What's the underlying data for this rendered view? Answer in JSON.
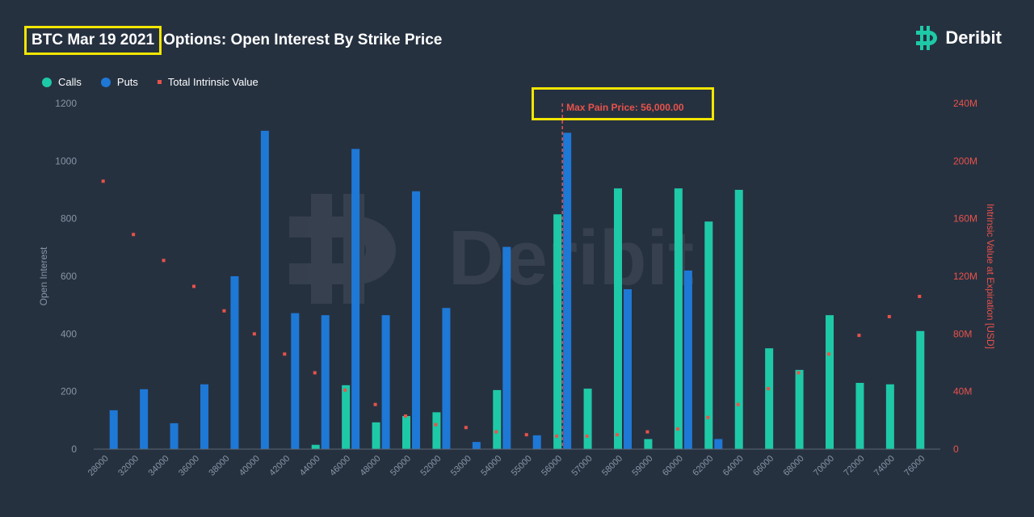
{
  "header": {
    "title_highlight": "BTC Mar 19 2021",
    "title_rest": "Options: Open Interest By Strike Price"
  },
  "brand": {
    "name": "Deribit",
    "logo_icon": "deribit-bitcoin-logo-icon"
  },
  "legend": [
    {
      "label": "Calls",
      "color": "#1ec9a7",
      "shape": "circle"
    },
    {
      "label": "Puts",
      "color": "#1e78d6",
      "shape": "circle"
    },
    {
      "label": "Total Intrinsic Value",
      "color": "#e8524a",
      "shape": "square"
    }
  ],
  "colors": {
    "calls": "#1ec9a7",
    "puts": "#1e78d6",
    "intrinsic": "#e8524a",
    "background": "#263140",
    "highlight": "#f2e600"
  },
  "chart_data": {
    "type": "bar",
    "categories": [
      "28000",
      "32000",
      "34000",
      "36000",
      "38000",
      "40000",
      "42000",
      "44000",
      "46000",
      "48000",
      "50000",
      "52000",
      "53000",
      "54000",
      "55000",
      "56000",
      "57000",
      "58000",
      "59000",
      "60000",
      "62000",
      "64000",
      "66000",
      "68000",
      "70000",
      "72000",
      "74000",
      "76000"
    ],
    "series": [
      {
        "name": "Calls",
        "axis": "left",
        "values": [
          0,
          0,
          0,
          0,
          0,
          0,
          0,
          15,
          222,
          93,
          115,
          128,
          0,
          205,
          0,
          815,
          210,
          905,
          35,
          905,
          790,
          900,
          350,
          275,
          465,
          230,
          225,
          410
        ]
      },
      {
        "name": "Puts",
        "axis": "left",
        "values": [
          135,
          208,
          90,
          225,
          600,
          1105,
          472,
          465,
          1042,
          465,
          895,
          490,
          25,
          702,
          48,
          1098,
          0,
          555,
          0,
          620,
          35,
          0,
          0,
          0,
          0,
          0,
          0,
          0
        ]
      },
      {
        "name": "Total Intrinsic Value",
        "axis": "right",
        "type": "scatter",
        "values": [
          186,
          149,
          131,
          113,
          96,
          80,
          66,
          53,
          41,
          31,
          23,
          17,
          15,
          12,
          10,
          9,
          9,
          10,
          12,
          14,
          22,
          31,
          42,
          53,
          66,
          79,
          92,
          106
        ]
      }
    ],
    "ylabel": "Open Interest",
    "y2label": "Intrinsic Value at Expiration [USD]",
    "ylim": [
      0,
      1200
    ],
    "y2lim": [
      0,
      240
    ],
    "yticks": [
      "0",
      "200",
      "400",
      "600",
      "800",
      "1000",
      "1200"
    ],
    "y2ticks": [
      "0",
      "40M",
      "80M",
      "120M",
      "160M",
      "200M",
      "240M"
    ],
    "max_pain": {
      "label": "Max Pain Price: 56,000.00",
      "strike": "56000"
    },
    "watermark": "Deribit"
  }
}
